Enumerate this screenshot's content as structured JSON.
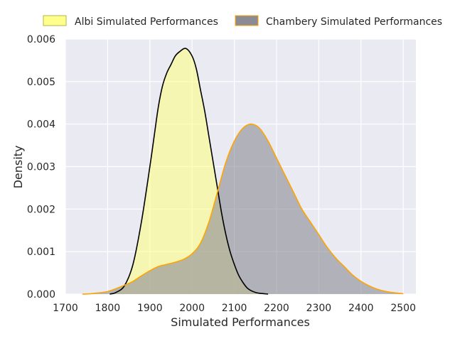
{
  "chart_data": {
    "type": "area",
    "title": "",
    "xlabel": "Simulated Performances",
    "ylabel": "Density",
    "xlim": [
      1700,
      2530
    ],
    "ylim": [
      0,
      0.006
    ],
    "x_ticks": [
      1700,
      1800,
      1900,
      2000,
      2100,
      2200,
      2300,
      2400,
      2500
    ],
    "x_tick_labels": [
      "1700",
      "1800",
      "1900",
      "2000",
      "2100",
      "2200",
      "2300",
      "2400",
      "2500"
    ],
    "y_ticks": [
      0,
      0.001,
      0.002,
      0.003,
      0.004,
      0.005,
      0.006
    ],
    "y_tick_labels": [
      "0.000",
      "0.001",
      "0.002",
      "0.003",
      "0.004",
      "0.005",
      "0.006"
    ],
    "grid": true,
    "legend_position": "top",
    "series": [
      {
        "name": "Albi Simulated Performances",
        "fill_color": "#ffff80",
        "line_color": "#000000",
        "x": [
          1805,
          1820,
          1840,
          1860,
          1880,
          1900,
          1910,
          1920,
          1930,
          1940,
          1950,
          1960,
          1970,
          1985,
          2000,
          2010,
          2020,
          2030,
          2040,
          2050,
          2060,
          2070,
          2080,
          2090,
          2100,
          2110,
          2120,
          2130,
          2140,
          2150,
          2160,
          2170,
          2180
        ],
        "values": [
          0.0,
          4e-05,
          0.0002,
          0.0007,
          0.0017,
          0.003,
          0.0037,
          0.0044,
          0.0049,
          0.0052,
          0.0054,
          0.0056,
          0.0057,
          0.00578,
          0.0056,
          0.0053,
          0.0048,
          0.0043,
          0.0037,
          0.0031,
          0.0025,
          0.0019,
          0.0014,
          0.001,
          0.0007,
          0.00045,
          0.00028,
          0.00015,
          8e-05,
          4e-05,
          2e-05,
          1e-05,
          0.0
        ]
      },
      {
        "name": "Chambery Simulated Performances",
        "fill_color": "#8b8b95",
        "line_color": "#ffa500",
        "x": [
          1740,
          1760,
          1780,
          1800,
          1820,
          1840,
          1860,
          1880,
          1900,
          1920,
          1940,
          1960,
          1980,
          2000,
          2020,
          2040,
          2060,
          2080,
          2100,
          2120,
          2140,
          2160,
          2180,
          2200,
          2220,
          2240,
          2260,
          2280,
          2300,
          2320,
          2340,
          2360,
          2380,
          2400,
          2420,
          2440,
          2460,
          2480,
          2500
        ],
        "values": [
          0.0,
          1e-05,
          3e-05,
          6e-05,
          0.00013,
          0.00021,
          0.0003,
          0.00043,
          0.00055,
          0.00065,
          0.0007,
          0.00075,
          0.00082,
          0.00095,
          0.0012,
          0.0017,
          0.0024,
          0.0031,
          0.0036,
          0.0039,
          0.004,
          0.0039,
          0.0036,
          0.0032,
          0.0028,
          0.0024,
          0.002,
          0.0017,
          0.0014,
          0.0011,
          0.00085,
          0.00065,
          0.00045,
          0.0003,
          0.00019,
          0.00011,
          6e-05,
          3e-05,
          1e-05
        ]
      }
    ]
  }
}
